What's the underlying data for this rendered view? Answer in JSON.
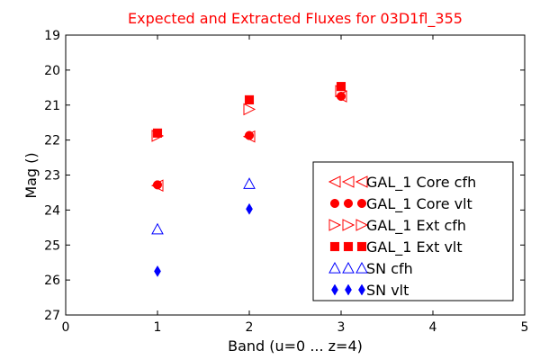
{
  "chart_data": {
    "type": "scatter",
    "title": "Expected and Extracted Fluxes for 03D1fl_355",
    "title_color": "#ff0000",
    "xlabel": "Band (u=0 ... z=4)",
    "ylabel": "Mag ()",
    "xlim": [
      0,
      5
    ],
    "ylim": [
      27,
      19
    ],
    "y_inverted": true,
    "x_ticks": [
      0,
      1,
      2,
      3,
      4,
      5
    ],
    "y_ticks": [
      19,
      20,
      21,
      22,
      23,
      24,
      25,
      26,
      27
    ],
    "grid": false,
    "legend_position": "lower-right",
    "series": [
      {
        "name": "GAL_1 Core cfh",
        "marker": "triangle-left",
        "filled": false,
        "color": "#ff0000",
        "points": [
          {
            "x": 1,
            "y": 23.3
          },
          {
            "x": 2,
            "y": 21.9
          },
          {
            "x": 3,
            "y": 20.75
          }
        ]
      },
      {
        "name": "GAL_1 Core vlt",
        "marker": "circle",
        "filled": true,
        "color": "#ff0000",
        "points": [
          {
            "x": 1,
            "y": 23.28
          },
          {
            "x": 2,
            "y": 21.87
          },
          {
            "x": 3,
            "y": 20.75
          }
        ]
      },
      {
        "name": "GAL_1 Ext cfh",
        "marker": "triangle-right",
        "filled": false,
        "color": "#ff0000",
        "points": [
          {
            "x": 1,
            "y": 21.88
          },
          {
            "x": 2,
            "y": 21.12
          },
          {
            "x": 3,
            "y": 20.6
          }
        ]
      },
      {
        "name": "GAL_1 Ext vlt",
        "marker": "square",
        "filled": true,
        "color": "#ff0000",
        "points": [
          {
            "x": 1,
            "y": 21.8
          },
          {
            "x": 2,
            "y": 20.85
          },
          {
            "x": 3,
            "y": 20.47
          }
        ]
      },
      {
        "name": "SN cfh",
        "marker": "triangle-up",
        "filled": false,
        "color": "#0000ff",
        "points": [
          {
            "x": 1,
            "y": 24.55
          },
          {
            "x": 2,
            "y": 23.25
          }
        ]
      },
      {
        "name": "SN vlt",
        "marker": "diamond-thin",
        "filled": true,
        "color": "#0000ff",
        "points": [
          {
            "x": 1,
            "y": 25.75
          },
          {
            "x": 2,
            "y": 23.97
          }
        ]
      }
    ]
  }
}
